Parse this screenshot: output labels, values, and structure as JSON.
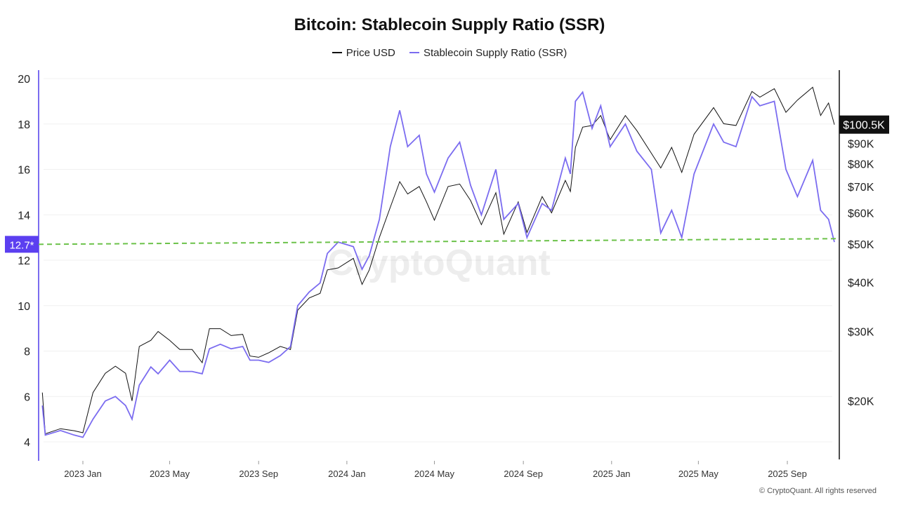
{
  "chart_data": {
    "type": "line",
    "title": "Bitcoin: Stablecoin Supply Ratio (SSR)",
    "legend_position": "top",
    "grid": true,
    "series": [
      {
        "name": "Price USD",
        "axis": "right",
        "scale": "log",
        "color": "#111111",
        "points": [
          [
            "2022-11-06",
            21000
          ],
          [
            "2022-11-10",
            16500
          ],
          [
            "2022-12-01",
            17000
          ],
          [
            "2022-12-20",
            16800
          ],
          [
            "2023-01-01",
            16600
          ],
          [
            "2023-01-15",
            21000
          ],
          [
            "2023-02-01",
            23500
          ],
          [
            "2023-02-15",
            24500
          ],
          [
            "2023-03-01",
            23500
          ],
          [
            "2023-03-10",
            20000
          ],
          [
            "2023-03-20",
            27500
          ],
          [
            "2023-04-05",
            28500
          ],
          [
            "2023-04-15",
            30000
          ],
          [
            "2023-05-01",
            28500
          ],
          [
            "2023-05-15",
            27000
          ],
          [
            "2023-06-01",
            27000
          ],
          [
            "2023-06-15",
            25000
          ],
          [
            "2023-06-25",
            30500
          ],
          [
            "2023-07-10",
            30500
          ],
          [
            "2023-07-25",
            29300
          ],
          [
            "2023-08-10",
            29500
          ],
          [
            "2023-08-20",
            26000
          ],
          [
            "2023-09-01",
            25800
          ],
          [
            "2023-09-15",
            26500
          ],
          [
            "2023-10-01",
            27500
          ],
          [
            "2023-10-15",
            27000
          ],
          [
            "2023-10-25",
            34000
          ],
          [
            "2023-11-10",
            36500
          ],
          [
            "2023-11-25",
            37500
          ],
          [
            "2023-12-05",
            43000
          ],
          [
            "2023-12-20",
            43500
          ],
          [
            "2024-01-10",
            46000
          ],
          [
            "2024-01-22",
            39500
          ],
          [
            "2024-02-01",
            43000
          ],
          [
            "2024-02-15",
            52000
          ],
          [
            "2024-03-01",
            62000
          ],
          [
            "2024-03-14",
            72000
          ],
          [
            "2024-03-25",
            67000
          ],
          [
            "2024-04-10",
            70000
          ],
          [
            "2024-04-20",
            64000
          ],
          [
            "2024-05-01",
            57500
          ],
          [
            "2024-05-20",
            70000
          ],
          [
            "2024-06-05",
            71000
          ],
          [
            "2024-06-20",
            64500
          ],
          [
            "2024-07-05",
            56000
          ],
          [
            "2024-07-25",
            67500
          ],
          [
            "2024-08-05",
            53000
          ],
          [
            "2024-08-25",
            64000
          ],
          [
            "2024-09-06",
            53500
          ],
          [
            "2024-09-27",
            66000
          ],
          [
            "2024-10-10",
            60000
          ],
          [
            "2024-10-29",
            72500
          ],
          [
            "2024-11-05",
            68000
          ],
          [
            "2024-11-12",
            88000
          ],
          [
            "2024-11-22",
            99000
          ],
          [
            "2024-12-05",
            100000
          ],
          [
            "2024-12-17",
            106000
          ],
          [
            "2024-12-30",
            92000
          ],
          [
            "2025-01-20",
            106000
          ],
          [
            "2025-02-05",
            97000
          ],
          [
            "2025-02-25",
            85000
          ],
          [
            "2025-03-10",
            78000
          ],
          [
            "2025-03-25",
            88000
          ],
          [
            "2025-04-08",
            76000
          ],
          [
            "2025-04-25",
            95000
          ],
          [
            "2025-05-22",
            111000
          ],
          [
            "2025-06-05",
            101000
          ],
          [
            "2025-06-22",
            100000
          ],
          [
            "2025-07-14",
            122000
          ],
          [
            "2025-07-25",
            118000
          ],
          [
            "2025-08-14",
            124000
          ],
          [
            "2025-08-30",
            108000
          ],
          [
            "2025-09-15",
            116000
          ],
          [
            "2025-10-06",
            125000
          ],
          [
            "2025-10-17",
            106000
          ],
          [
            "2025-10-28",
            114000
          ],
          [
            "2025-11-05",
            100500
          ]
        ]
      },
      {
        "name": "Stablecoin Supply Ratio (SSR)",
        "axis": "left",
        "scale": "linear",
        "color": "#7b6cf0",
        "points": [
          [
            "2022-11-06",
            5.6
          ],
          [
            "2022-11-10",
            4.3
          ],
          [
            "2022-12-01",
            4.5
          ],
          [
            "2022-12-20",
            4.3
          ],
          [
            "2023-01-01",
            4.2
          ],
          [
            "2023-01-15",
            5.0
          ],
          [
            "2023-02-01",
            5.8
          ],
          [
            "2023-02-15",
            6.0
          ],
          [
            "2023-03-01",
            5.6
          ],
          [
            "2023-03-10",
            5.0
          ],
          [
            "2023-03-20",
            6.5
          ],
          [
            "2023-04-05",
            7.3
          ],
          [
            "2023-04-15",
            7.0
          ],
          [
            "2023-05-01",
            7.6
          ],
          [
            "2023-05-15",
            7.1
          ],
          [
            "2023-06-01",
            7.1
          ],
          [
            "2023-06-15",
            7.0
          ],
          [
            "2023-06-25",
            8.1
          ],
          [
            "2023-07-10",
            8.3
          ],
          [
            "2023-07-25",
            8.1
          ],
          [
            "2023-08-10",
            8.2
          ],
          [
            "2023-08-20",
            7.6
          ],
          [
            "2023-09-01",
            7.6
          ],
          [
            "2023-09-15",
            7.5
          ],
          [
            "2023-10-01",
            7.8
          ],
          [
            "2023-10-15",
            8.2
          ],
          [
            "2023-10-25",
            10.0
          ],
          [
            "2023-11-10",
            10.6
          ],
          [
            "2023-11-25",
            11.0
          ],
          [
            "2023-12-05",
            12.3
          ],
          [
            "2023-12-20",
            12.8
          ],
          [
            "2024-01-10",
            12.6
          ],
          [
            "2024-01-22",
            11.6
          ],
          [
            "2024-02-01",
            12.2
          ],
          [
            "2024-02-15",
            13.8
          ],
          [
            "2024-03-01",
            17.0
          ],
          [
            "2024-03-14",
            18.6
          ],
          [
            "2024-03-25",
            17.0
          ],
          [
            "2024-04-10",
            17.5
          ],
          [
            "2024-04-20",
            15.8
          ],
          [
            "2024-05-01",
            15.0
          ],
          [
            "2024-05-20",
            16.5
          ],
          [
            "2024-06-05",
            17.2
          ],
          [
            "2024-06-20",
            15.3
          ],
          [
            "2024-07-05",
            14.0
          ],
          [
            "2024-07-25",
            16.0
          ],
          [
            "2024-08-05",
            13.8
          ],
          [
            "2024-08-25",
            14.5
          ],
          [
            "2024-09-06",
            13.0
          ],
          [
            "2024-09-27",
            14.5
          ],
          [
            "2024-10-10",
            14.2
          ],
          [
            "2024-10-29",
            16.5
          ],
          [
            "2024-11-05",
            15.8
          ],
          [
            "2024-11-12",
            19.0
          ],
          [
            "2024-11-22",
            19.4
          ],
          [
            "2024-12-05",
            17.8
          ],
          [
            "2024-12-17",
            18.8
          ],
          [
            "2024-12-30",
            17.0
          ],
          [
            "2025-01-20",
            18.0
          ],
          [
            "2025-02-05",
            16.8
          ],
          [
            "2025-02-25",
            16.0
          ],
          [
            "2025-03-10",
            13.2
          ],
          [
            "2025-03-25",
            14.2
          ],
          [
            "2025-04-08",
            13.0
          ],
          [
            "2025-04-25",
            15.8
          ],
          [
            "2025-05-22",
            18.0
          ],
          [
            "2025-06-05",
            17.2
          ],
          [
            "2025-06-22",
            17.0
          ],
          [
            "2025-07-14",
            19.2
          ],
          [
            "2025-07-25",
            18.8
          ],
          [
            "2025-08-14",
            19.0
          ],
          [
            "2025-08-30",
            16.0
          ],
          [
            "2025-09-15",
            14.8
          ],
          [
            "2025-10-06",
            16.4
          ],
          [
            "2025-10-17",
            14.2
          ],
          [
            "2025-10-28",
            13.8
          ],
          [
            "2025-11-05",
            12.8
          ]
        ]
      }
    ],
    "threshold_line": {
      "color": "#6cc24a",
      "style": "dashed",
      "start_value": 12.7,
      "end_value": 12.95
    },
    "left_axis": {
      "range": [
        3.4,
        20.4
      ],
      "ticks": [
        4,
        6,
        8,
        10,
        12,
        14,
        16,
        18,
        20
      ],
      "tick_labels": [
        "4",
        "6",
        "8",
        "10",
        "12",
        "14",
        "16",
        "18",
        "20"
      ],
      "highlight_label": "12.7*",
      "highlight_value": 12.7,
      "highlight_color": "#5b3ff0"
    },
    "right_axis": {
      "scale": "log",
      "ticks": [
        20000,
        30000,
        40000,
        50000,
        60000,
        70000,
        80000,
        90000
      ],
      "tick_labels": [
        "$20K",
        "$30K",
        "$40K",
        "$50K",
        "$60K",
        "$70K",
        "$80K",
        "$90K"
      ],
      "current_label": "$100.5K",
      "current_value": 100500
    },
    "x_axis": {
      "ticks": [
        "2023-01-01",
        "2023-05-01",
        "2023-09-01",
        "2024-01-01",
        "2024-05-01",
        "2024-09-01",
        "2025-01-01",
        "2025-05-01",
        "2025-09-01"
      ],
      "tick_labels": [
        "2023 Jan",
        "2023 May",
        "2023 Sep",
        "2024 Jan",
        "2024 May",
        "2024 Sep",
        "2025 Jan",
        "2025 May",
        "2025 Sep"
      ]
    }
  },
  "watermark": "CryptoQuant",
  "footer": "© CryptoQuant. All rights reserved"
}
